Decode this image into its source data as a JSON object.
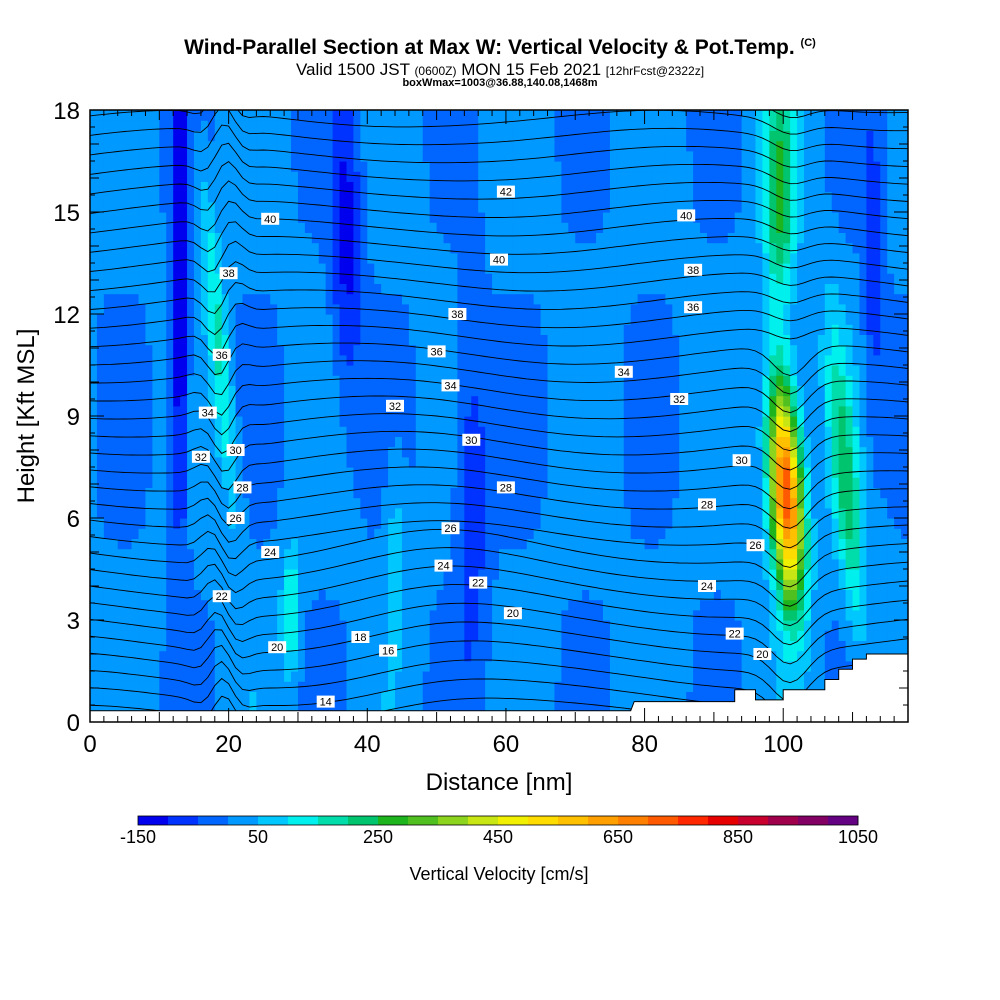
{
  "title": {
    "main": "Wind-Parallel Section at Max W: Vertical Velocity & Pot.Temp.",
    "copyright": "(C)",
    "valid_prefix": "Valid 1500 JST",
    "valid_utc": "(0600Z)",
    "valid_date": "MON 15 Feb 2021",
    "forecast": "[12hrFcst@2322z]",
    "box": "boxWmax=1003@36.88,140.08,1468m"
  },
  "chart_data": {
    "type": "heatmap",
    "xlabel": "Distance [nm]",
    "ylabel": "Height [Kft MSL]",
    "xlim": [
      0,
      118
    ],
    "ylim": [
      0,
      18
    ],
    "xticks": [
      0,
      20,
      40,
      60,
      80,
      100
    ],
    "yticks": [
      0,
      3,
      6,
      9,
      12,
      15,
      18
    ],
    "colorbar": {
      "label": "Vertical Velocity [cm/s]",
      "tick_labels": [
        -150,
        50,
        250,
        450,
        650,
        850,
        1050
      ],
      "levels": [
        -150,
        -100,
        -50,
        0,
        50,
        100,
        150,
        200,
        250,
        300,
        350,
        400,
        450,
        500,
        550,
        600,
        650,
        700,
        750,
        800,
        850,
        900,
        950,
        1000,
        1050
      ],
      "colors": [
        "#0000ee",
        "#0033ff",
        "#0066ff",
        "#0099ff",
        "#00c8ff",
        "#00f0ee",
        "#00dcaa",
        "#00c46e",
        "#1eb41e",
        "#50c020",
        "#8cd41e",
        "#c8e614",
        "#f0f000",
        "#ffdc00",
        "#ffc000",
        "#ffa000",
        "#ff8000",
        "#ff5a00",
        "#ff2800",
        "#e60000",
        "#c8002d",
        "#a0004b",
        "#820064",
        "#640082"
      ]
    },
    "w_features": [
      {
        "type": "updraft",
        "x": 101,
        "z": 6.5,
        "peak_w": 850
      },
      {
        "type": "updraft",
        "x": 109,
        "z": 7.5,
        "peak_w": 300
      },
      {
        "type": "updraft",
        "x": 19,
        "z": 11,
        "peak_w": 200
      },
      {
        "type": "updraft",
        "x": 29,
        "z": 3.5,
        "peak_w": 250
      },
      {
        "type": "downdraft",
        "x": 13,
        "z": 13,
        "peak_w": -150
      },
      {
        "type": "downdraft",
        "x": 37,
        "z": 14,
        "peak_w": -100
      }
    ],
    "theta_labels": [
      {
        "text": "14",
        "x": 34,
        "z": 0.6
      },
      {
        "text": "16",
        "x": 43,
        "z": 2.1
      },
      {
        "text": "18",
        "x": 39,
        "z": 2.5
      },
      {
        "text": "20",
        "x": 27,
        "z": 2.2
      },
      {
        "text": "20",
        "x": 61,
        "z": 3.2
      },
      {
        "text": "20",
        "x": 97,
        "z": 2.0
      },
      {
        "text": "22",
        "x": 19,
        "z": 3.7
      },
      {
        "text": "22",
        "x": 56,
        "z": 4.1
      },
      {
        "text": "22",
        "x": 93,
        "z": 2.6
      },
      {
        "text": "24",
        "x": 26,
        "z": 5.0
      },
      {
        "text": "24",
        "x": 51,
        "z": 4.6
      },
      {
        "text": "24",
        "x": 89,
        "z": 4.0
      },
      {
        "text": "26",
        "x": 21,
        "z": 6.0
      },
      {
        "text": "26",
        "x": 52,
        "z": 5.7
      },
      {
        "text": "26",
        "x": 96,
        "z": 5.2
      },
      {
        "text": "28",
        "x": 22,
        "z": 6.9
      },
      {
        "text": "28",
        "x": 60,
        "z": 6.9
      },
      {
        "text": "28",
        "x": 89,
        "z": 6.4
      },
      {
        "text": "30",
        "x": 21,
        "z": 8.0
      },
      {
        "text": "30",
        "x": 55,
        "z": 8.3
      },
      {
        "text": "30",
        "x": 94,
        "z": 7.7
      },
      {
        "text": "32",
        "x": 16,
        "z": 7.8
      },
      {
        "text": "32",
        "x": 44,
        "z": 9.3
      },
      {
        "text": "32",
        "x": 85,
        "z": 9.5
      },
      {
        "text": "34",
        "x": 17,
        "z": 9.1
      },
      {
        "text": "34",
        "x": 52,
        "z": 9.9
      },
      {
        "text": "34",
        "x": 77,
        "z": 10.3
      },
      {
        "text": "36",
        "x": 19,
        "z": 10.8
      },
      {
        "text": "36",
        "x": 50,
        "z": 10.9
      },
      {
        "text": "36",
        "x": 87,
        "z": 12.2
      },
      {
        "text": "38",
        "x": 20,
        "z": 13.2
      },
      {
        "text": "38",
        "x": 53,
        "z": 12.0
      },
      {
        "text": "38",
        "x": 87,
        "z": 13.3
      },
      {
        "text": "40",
        "x": 26,
        "z": 14.8
      },
      {
        "text": "40",
        "x": 59,
        "z": 13.6
      },
      {
        "text": "40",
        "x": 86,
        "z": 14.9
      },
      {
        "text": "42",
        "x": 60,
        "z": 15.6
      }
    ],
    "terrain": [
      [
        0,
        0.33
      ],
      [
        78,
        0.33
      ],
      [
        78.5,
        0.6
      ],
      [
        93,
        0.6
      ],
      [
        93,
        0.95
      ],
      [
        96,
        0.95
      ],
      [
        96,
        0.65
      ],
      [
        100,
        0.65
      ],
      [
        100,
        0.95
      ],
      [
        106,
        0.95
      ],
      [
        106,
        1.25
      ],
      [
        108,
        1.25
      ],
      [
        108,
        1.55
      ],
      [
        110,
        1.55
      ],
      [
        110,
        1.85
      ],
      [
        112,
        1.85
      ],
      [
        112,
        2.0
      ],
      [
        118,
        2.0
      ]
    ]
  }
}
